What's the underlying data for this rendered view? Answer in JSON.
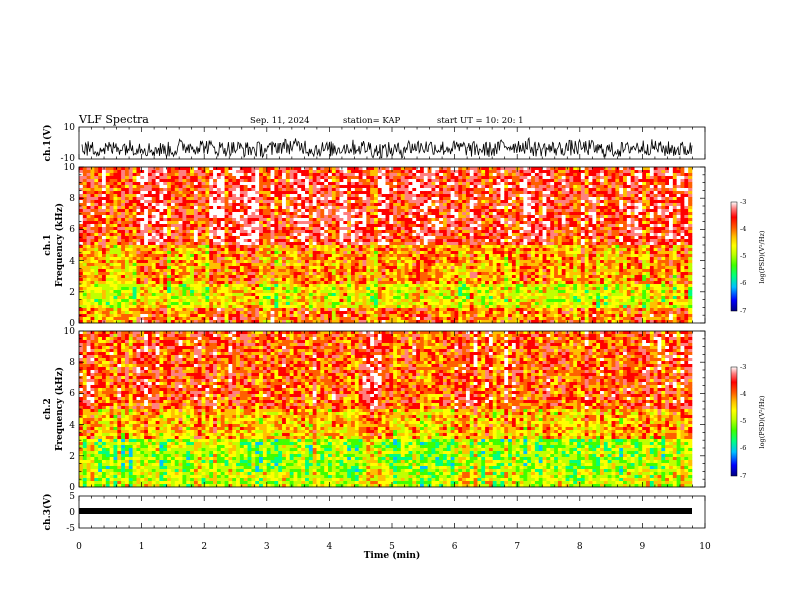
{
  "header": {
    "title": "VLF Spectra",
    "date": "Sep. 11, 2024",
    "station": "station= KAP",
    "start_ut": "start UT =   10: 20: 1"
  },
  "colors": {
    "spectrogram_palette": [
      "#000080",
      "#0000ff",
      "#00c0ff",
      "#00ff80",
      "#40ff00",
      "#c0ff00",
      "#ffff00",
      "#ffc000",
      "#ff6000",
      "#ff0000",
      "#ff8080",
      "#ffffff"
    ],
    "waveform": "#000000"
  },
  "chart_data": [
    {
      "type": "line",
      "panel": "ch1-waveform",
      "ylabel": "ch.1(V)",
      "ylim": [
        -10,
        10
      ],
      "y_tick_labels": [
        "10",
        "-10"
      ],
      "xlim": [
        0,
        10
      ],
      "description_of_signal": "dense noise trace centered near -3 V, spanning roughly -7 to +7 V",
      "series": [
        {
          "values": [
            -3,
            2,
            -6,
            4,
            -2,
            -5,
            5,
            -4,
            1,
            -7,
            3,
            -1,
            -5,
            6,
            -3,
            0,
            -6,
            2,
            -4,
            4
          ]
        }
      ]
    },
    {
      "type": "heatmap",
      "panel": "ch1-spectrogram",
      "ylabel": "ch.1\nFrequency (kHz)",
      "ylim": [
        0,
        10
      ],
      "y_tick_labels": [
        "0",
        "2",
        "4",
        "6",
        "8",
        "10"
      ],
      "xlim": [
        0,
        10
      ],
      "colorbar": {
        "label": "log(PSD)(V²/Hz)",
        "range": [
          -7,
          -3
        ],
        "tick_labels": [
          "-3",
          "-4",
          "-5",
          "-6",
          "-7"
        ]
      },
      "levels_by_frequency_kHz": [
        {
          "f": [
            0,
            1
          ],
          "logpsd": -4.2
        },
        {
          "f": [
            1,
            2.5
          ],
          "logpsd": -4.9
        },
        {
          "f": [
            2.5,
            5
          ],
          "logpsd": -4.4
        },
        {
          "f": [
            5,
            10
          ],
          "logpsd": -3.8
        }
      ]
    },
    {
      "type": "heatmap",
      "panel": "ch2-spectrogram",
      "ylabel": "ch.2\nFrequency (kHz)",
      "ylim": [
        0,
        10
      ],
      "y_tick_labels": [
        "0",
        "2",
        "4",
        "6",
        "8",
        "10"
      ],
      "xlim": [
        0,
        10
      ],
      "colorbar": {
        "label": "log(PSD)(V²/Hz)",
        "range": [
          -7,
          -3
        ],
        "tick_labels": [
          "-3",
          "-4",
          "-5",
          "-6",
          "-7"
        ]
      },
      "levels_by_frequency_kHz": [
        {
          "f": [
            0,
            1
          ],
          "logpsd": -5.0
        },
        {
          "f": [
            1,
            3
          ],
          "logpsd": -5.2
        },
        {
          "f": [
            3,
            5
          ],
          "logpsd": -4.5
        },
        {
          "f": [
            5,
            10
          ],
          "logpsd": -4.0
        }
      ]
    },
    {
      "type": "line",
      "panel": "ch3-waveform",
      "ylabel": "ch.3(V)",
      "ylim": [
        -5,
        5
      ],
      "y_tick_labels": [
        "5",
        "0",
        "-5"
      ],
      "xlim": [
        0,
        10
      ],
      "xlabel": "Time (min)",
      "x_tick_labels": [
        "0",
        "1",
        "2",
        "3",
        "4",
        "5",
        "6",
        "7",
        "8",
        "9",
        "10"
      ],
      "series": [
        {
          "values": [
            -0.5,
            -0.5
          ]
        }
      ]
    }
  ]
}
